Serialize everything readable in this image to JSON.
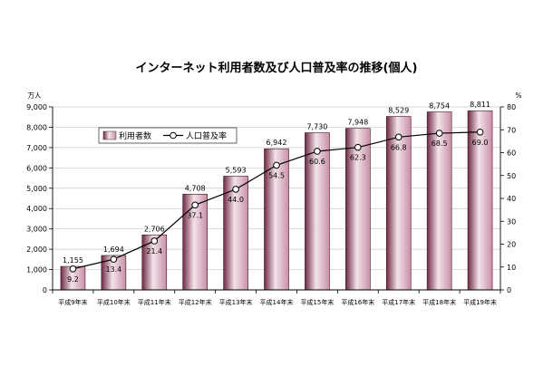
{
  "chart_data": {
    "type": "bar",
    "title": "インターネット利用者数及び人口普及率の推移(個人)",
    "categories": [
      "平成9年末",
      "平成10年末",
      "平成11年末",
      "平成12年末",
      "平成13年末",
      "平成14年末",
      "平成15年末",
      "平成16年末",
      "平成17年末",
      "平成18年末",
      "平成19年末"
    ],
    "series": [
      {
        "name": "利用者数",
        "type": "bar",
        "axis": "left",
        "values": [
          1155,
          1694,
          2706,
          4708,
          5593,
          6942,
          7730,
          7948,
          8529,
          8754,
          8811
        ],
        "labels": [
          "1,155",
          "1,694",
          "2,706",
          "4,708",
          "5,593",
          "6,942",
          "7,730",
          "7,948",
          "8,529",
          "8,754",
          "8,811"
        ]
      },
      {
        "name": "人口普及率",
        "type": "line",
        "axis": "right",
        "values": [
          9.2,
          13.4,
          21.4,
          37.1,
          44.0,
          54.5,
          60.6,
          62.3,
          66.8,
          68.5,
          69.0
        ],
        "labels": [
          "9.2",
          "13.4",
          "21.4",
          "37.1",
          "44.0",
          "54.5",
          "60.6",
          "62.3",
          "66.8",
          "68.5",
          "69.0"
        ]
      }
    ],
    "y_left": {
      "unit": "万人",
      "range": [
        0,
        9000
      ],
      "ticks": [
        "0",
        "1,000",
        "2,000",
        "3,000",
        "4,000",
        "5,000",
        "6,000",
        "7,000",
        "8,000",
        "9,000"
      ]
    },
    "y_right": {
      "unit": "%",
      "range": [
        0,
        80
      ],
      "ticks": [
        "0",
        "10",
        "20",
        "30",
        "40",
        "50",
        "60",
        "70",
        "80"
      ]
    },
    "legend_position": "top-left",
    "grid": true,
    "colors": {
      "bar_dark": "#6e2843",
      "bar_mid": "#c98fa7",
      "bar_light": "#f3e3ea",
      "line": "#000000",
      "marker_fill": "#ffffff",
      "plot_bg": "#ffffff",
      "grid": "#c8c8c8"
    }
  }
}
